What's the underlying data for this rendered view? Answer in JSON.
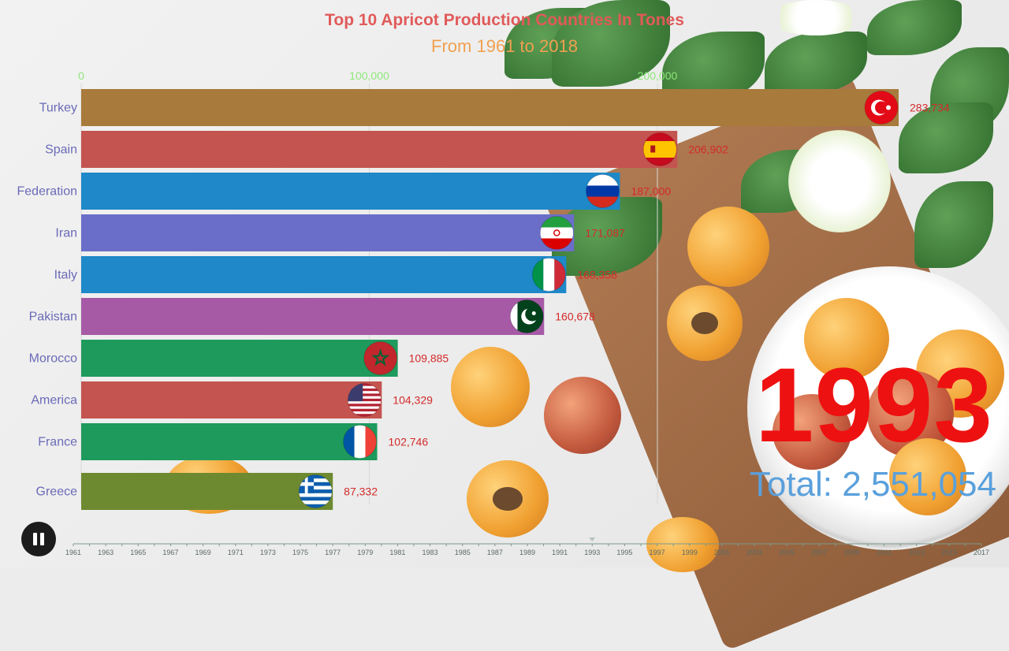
{
  "chart_data": {
    "type": "bar",
    "orientation": "horizontal",
    "title": "Top 10 Apricot Production Countries In Tones",
    "subtitle": "From 1961 to 2018",
    "categories": [
      "Turkey",
      "Spain",
      "Federation",
      "Iran",
      "Italy",
      "Pakistan",
      "Morocco",
      "America",
      "France",
      "Greece"
    ],
    "values": [
      283734,
      206902,
      187000,
      171087,
      168358,
      160678,
      109885,
      104329,
      102746,
      87332
    ],
    "value_labels": [
      "283,734",
      "206,902",
      "187,000",
      "171,087",
      "168,358",
      "160,678",
      "109,885",
      "104,329",
      "102,746",
      "87,332"
    ],
    "bar_colors": [
      "#a87a3c",
      "#c4544f",
      "#1e88c8",
      "#6a6ec8",
      "#1e88c8",
      "#a65aa6",
      "#1e9a5c",
      "#c4544f",
      "#1e9a5c",
      "#6e8a30"
    ],
    "flag_icons": [
      "turkey-flag-icon",
      "spain-flag-icon",
      "russia-flag-icon",
      "iran-flag-icon",
      "italy-flag-icon",
      "pakistan-flag-icon",
      "morocco-flag-icon",
      "usa-flag-icon",
      "france-flag-icon",
      "greece-flag-icon"
    ],
    "xaxis_ticks": [
      0,
      100000,
      200000
    ],
    "xaxis_tick_labels": [
      "0",
      "100,000",
      "200,000"
    ],
    "xlim": [
      0,
      283734
    ],
    "grid": true,
    "year": "1993",
    "total_label": "Total: 2,551,054",
    "timeline_years": [
      "1961",
      "1963",
      "1965",
      "1967",
      "1969",
      "1971",
      "1973",
      "1975",
      "1977",
      "1979",
      "1981",
      "1983",
      "1985",
      "1987",
      "1989",
      "1991",
      "1993",
      "1995",
      "1997",
      "1999",
      "2001",
      "2003",
      "2005",
      "2007",
      "2009",
      "2011",
      "2013",
      "2015",
      "2017"
    ],
    "timeline_current": "1993"
  },
  "controls": {
    "pause_icon": "pause-icon"
  }
}
